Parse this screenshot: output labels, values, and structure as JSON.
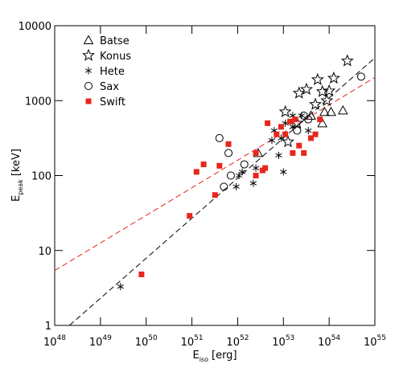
{
  "chart_data": {
    "type": "scatter",
    "log_x": true,
    "log_y": true,
    "xlabel": {
      "main": "E",
      "sub": "iso",
      "rest": "[erg]"
    },
    "ylabel": {
      "main": "E",
      "sub": "peak",
      "rest": "[keV]"
    },
    "xlim": [
      1e+48,
      1e+55
    ],
    "ylim": [
      1,
      10000
    ],
    "xticks": [
      {
        "value": 1e+48,
        "label": "10",
        "sup": "48"
      },
      {
        "value": 1e+49,
        "label": "10",
        "sup": "49"
      },
      {
        "value": 1e+50,
        "label": "10",
        "sup": "50"
      },
      {
        "value": 1e+51,
        "label": "10",
        "sup": "51"
      },
      {
        "value": 1e+52,
        "label": "10",
        "sup": "52"
      },
      {
        "value": 1e+53,
        "label": "10",
        "sup": "53"
      },
      {
        "value": 1e+54,
        "label": "10",
        "sup": "54"
      },
      {
        "value": 1e+55,
        "label": "10",
        "sup": "55"
      }
    ],
    "yticks": [
      1,
      10,
      100,
      1000,
      10000
    ],
    "legend": "top-left",
    "series": [
      {
        "name": "Batse",
        "marker": "triangle",
        "color": "#000000",
        "x": [
          2.8e+52,
          4e+53,
          7.9e+53,
          1.1e+54,
          2e+54,
          7.1e+53
        ],
        "values": [
          200,
          631,
          708,
          708,
          741,
          500
        ]
      },
      {
        "name": "Konus",
        "marker": "star",
        "color": "#000000",
        "x": [
          2.2e+53,
          3.2e+53,
          5e+53,
          5.6e+53,
          7.1e+53,
          8.9e+53,
          1e+54,
          1.26e+54,
          1.26e+53,
          2e+53,
          2.5e+54,
          1.1e+53
        ],
        "values": [
          1259,
          1413,
          891,
          1905,
          1318,
          1000,
          1349,
          1995,
          282,
          500,
          3388,
          708
        ]
      },
      {
        "name": "Hete",
        "marker": "asterisk",
        "color": "#000000",
        "x": [
          2.75e+49,
          9.3e+51,
          1.07e+52,
          1.26e+52,
          2.2e+52,
          2.5e+52,
          5.6e+52,
          7.9e+52,
          8.9e+52,
          1e+53,
          1.1e+53,
          1.6e+53,
          2.5e+53,
          3.5e+53,
          1.6e+53,
          6.3e+52
        ],
        "values": [
          3.3,
          71,
          100,
          112,
          79,
          126,
          295,
          186,
          316,
          112,
          500,
          447,
          631,
          398,
          631,
          398
        ]
      },
      {
        "name": "Sax",
        "marker": "circle",
        "color": "#000000",
        "x": [
          5e+51,
          7.1e+51,
          6.3e+51,
          1.4e+52,
          2e+53,
          2.8e+53,
          3.5e+53,
          5e+54,
          4e+51
        ],
        "values": [
          71,
          100,
          200,
          141,
          398,
          631,
          562,
          2089,
          316
        ]
      },
      {
        "name": "Swift",
        "marker": "square",
        "color": "#e8261c",
        "x": [
          7.9e+49,
          8.9e+50,
          1.26e+51,
          1.8e+51,
          3.2e+51,
          4e+51,
          6.3e+51,
          2.5e+52,
          3.5e+52,
          4e+52,
          4.5e+52,
          7.1e+52,
          8.9e+52,
          1.4e+53,
          1.6e+53,
          1.8e+53,
          2.8e+53,
          4e+53,
          5e+53,
          2.2e+53,
          6.3e+53,
          2.5e+52,
          1.1e+53
        ],
        "values": [
          4.8,
          29,
          112,
          141,
          55,
          135,
          263,
          200,
          117,
          126,
          500,
          355,
          447,
          525,
          200,
          562,
          200,
          316,
          355,
          251,
          562,
          100,
          355
        ]
      }
    ],
    "lines": [
      {
        "color": "#000000",
        "x": [
          2.1e+48,
          1e+55
        ],
        "values": [
          1,
          3715
        ]
      },
      {
        "color": "#e8261c",
        "x": [
          1e+48,
          1e+55
        ],
        "values": [
          5.4,
          2040
        ]
      }
    ]
  }
}
